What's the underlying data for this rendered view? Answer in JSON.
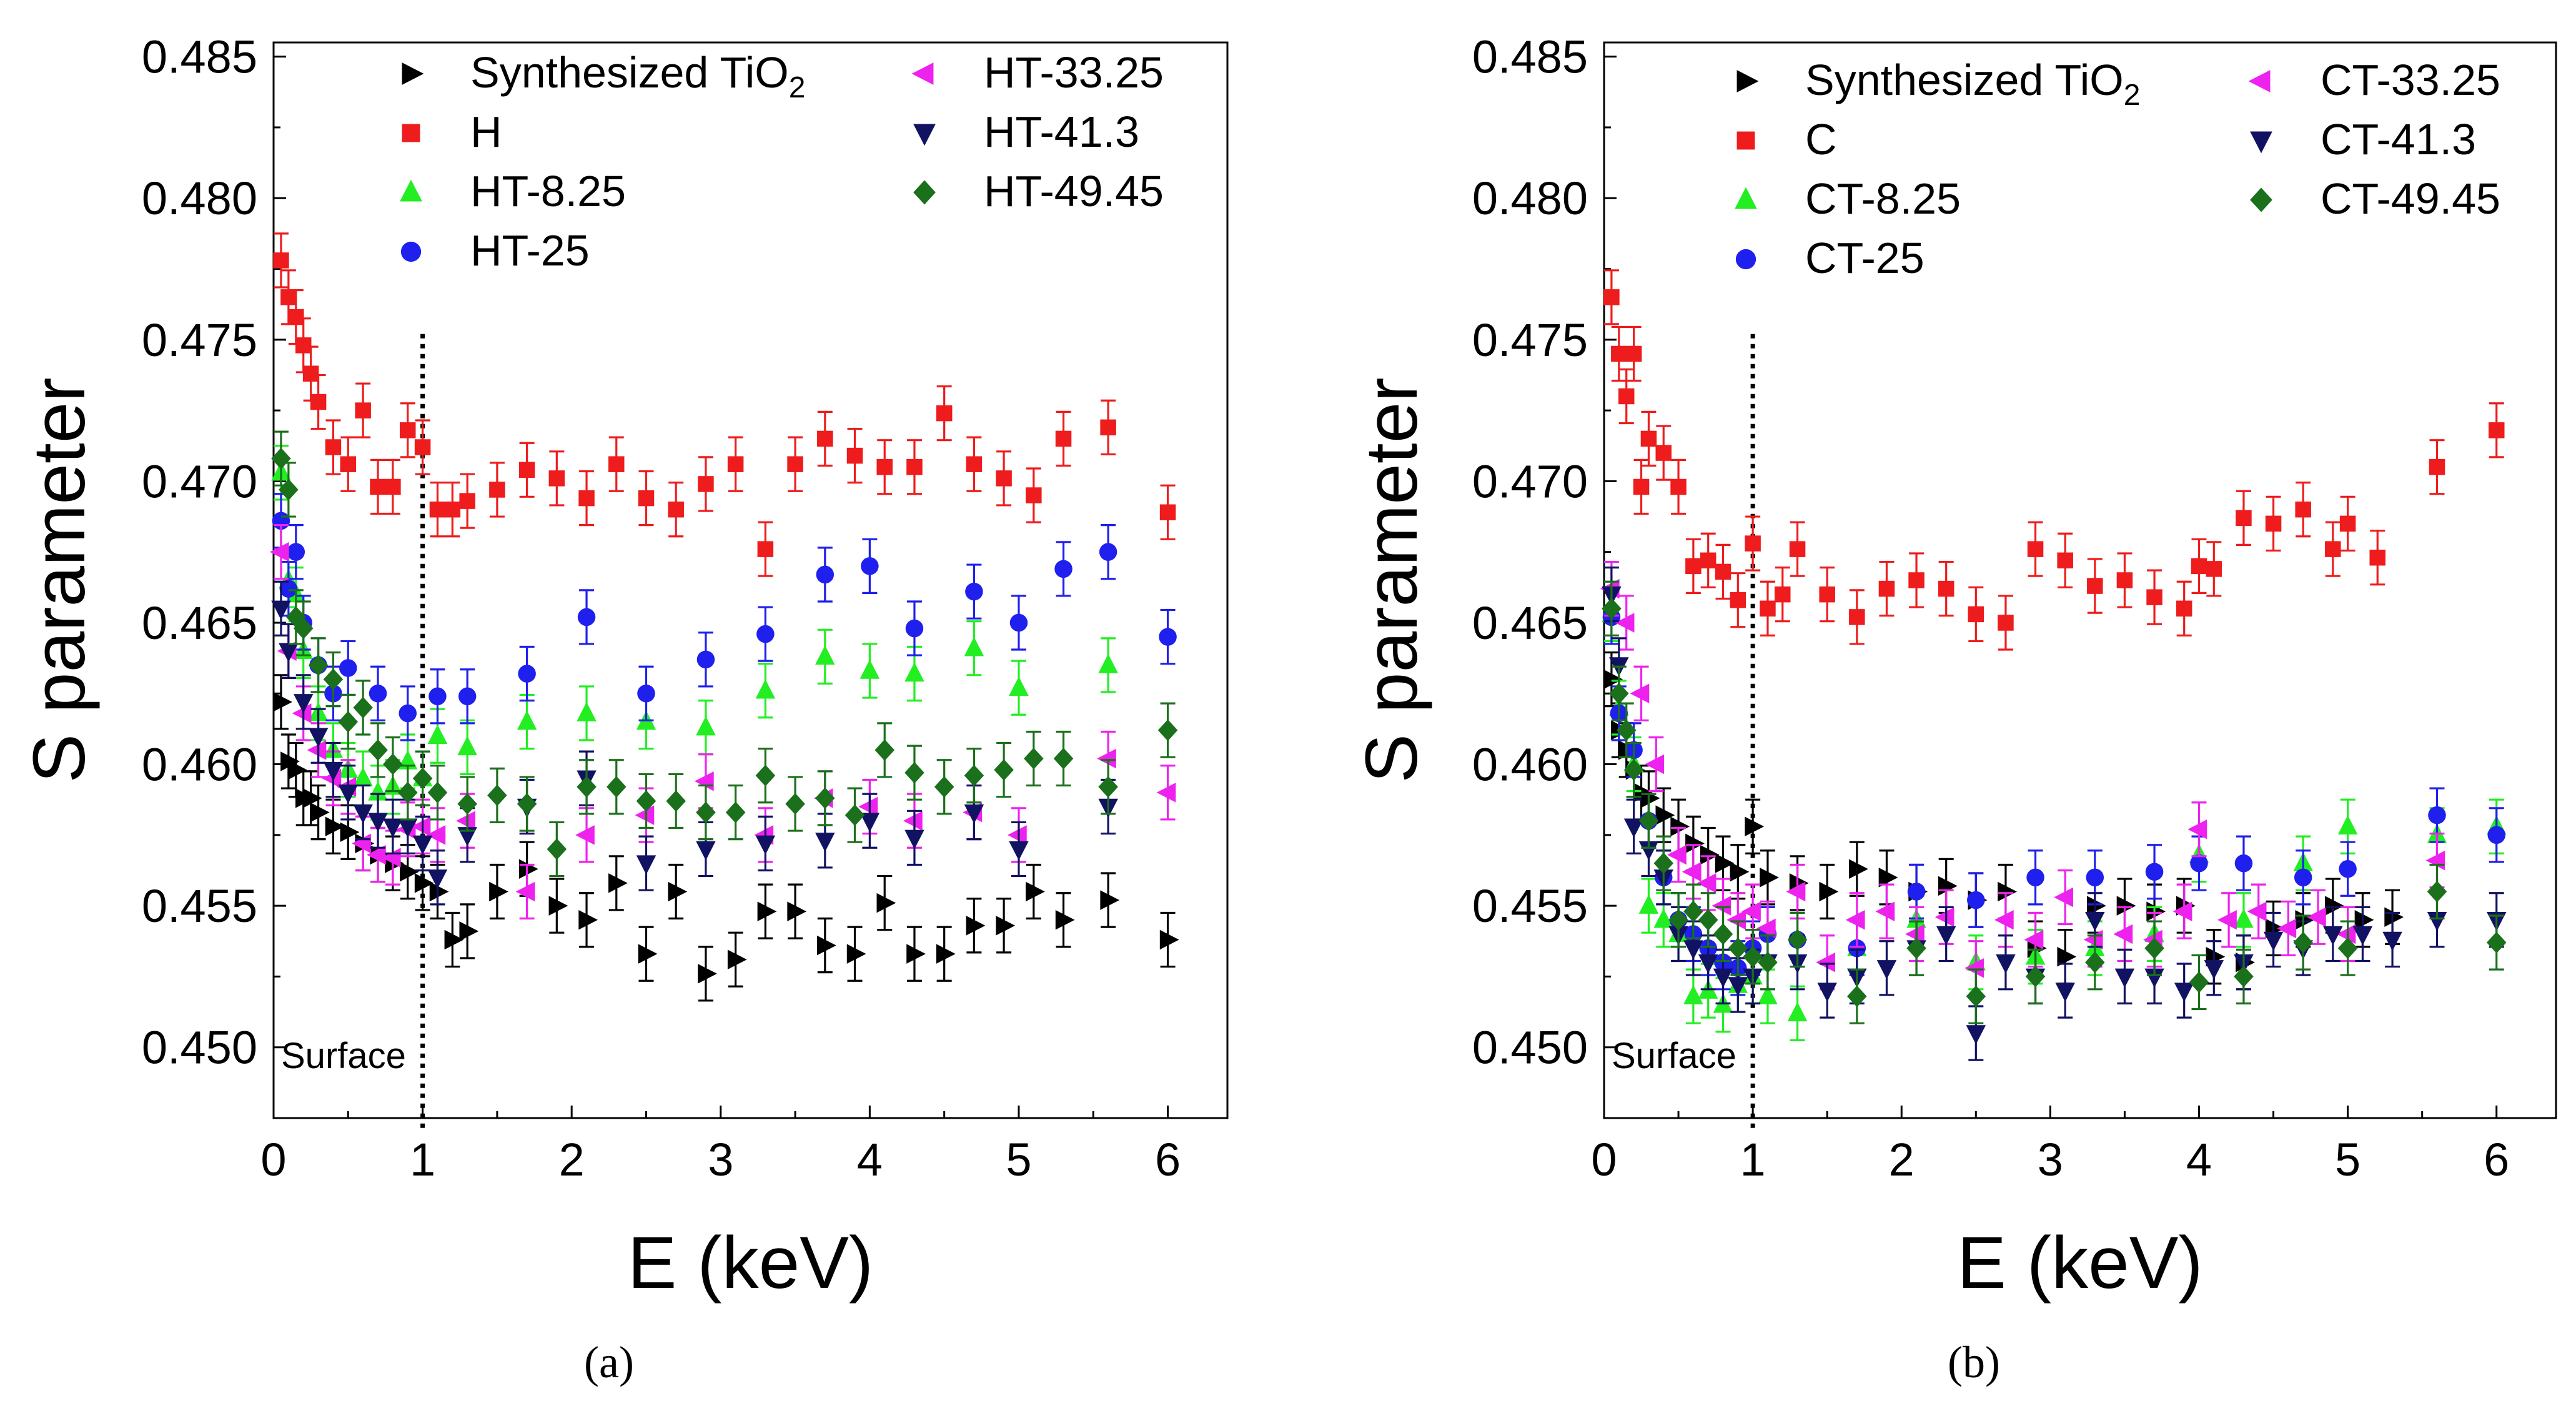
{
  "chart_data": [
    {
      "type": "scatter",
      "xlabel": "E (keV)",
      "ylabel": "S parameter",
      "xlim": [
        0,
        6.4
      ],
      "ylim": [
        0.4475,
        0.4855
      ],
      "xticks": [
        "0",
        "1",
        "2",
        "3",
        "4",
        "5",
        "6"
      ],
      "yticks": [
        "0.450",
        "0.455",
        "0.460",
        "0.465",
        "0.470",
        "0.475",
        "0.480",
        "0.485"
      ],
      "annotation": "Surface",
      "caption": "(a)",
      "series": [
        {
          "name": "Synthesized TiO2",
          "label_main": "Synthesized TiO",
          "label_sub": "2",
          "color": "#000000",
          "marker": "tri-right",
          "x": [
            0.05,
            0.1,
            0.15,
            0.2,
            0.25,
            0.3,
            0.4,
            0.5,
            0.6,
            0.7,
            0.8,
            0.9,
            1.0,
            1.1,
            1.2,
            1.3,
            1.5,
            1.7,
            1.9,
            2.1,
            2.3,
            2.5,
            2.7,
            2.9,
            3.1,
            3.3,
            3.5,
            3.7,
            3.9,
            4.1,
            4.3,
            4.5,
            4.7,
            4.9,
            5.1,
            5.3,
            5.6,
            6.0
          ],
          "y": [
            0.4622,
            0.4601,
            0.4598,
            0.4588,
            0.4588,
            0.4583,
            0.4578,
            0.4576,
            0.4572,
            0.4568,
            0.4565,
            0.4562,
            0.4558,
            0.4555,
            0.4538,
            0.4541,
            0.4555,
            0.4563,
            0.455,
            0.4545,
            0.4558,
            0.4533,
            0.4555,
            0.4526,
            0.4531,
            0.4548,
            0.4548,
            0.4536,
            0.4533,
            0.4551,
            0.4533,
            0.4533,
            0.4543,
            0.4543,
            0.4555,
            0.4545,
            0.4552,
            0.4538
          ]
        },
        {
          "name": "H",
          "color": "#ee1c1c",
          "marker": "square",
          "x": [
            0.05,
            0.1,
            0.15,
            0.2,
            0.25,
            0.3,
            0.4,
            0.5,
            0.6,
            0.7,
            0.8,
            0.9,
            1.0,
            1.1,
            1.2,
            1.3,
            1.5,
            1.7,
            1.9,
            2.1,
            2.3,
            2.5,
            2.7,
            2.9,
            3.1,
            3.3,
            3.5,
            3.7,
            3.9,
            4.1,
            4.3,
            4.5,
            4.7,
            4.9,
            5.1,
            5.3,
            5.6,
            6.0
          ],
          "y": [
            0.4778,
            0.4765,
            0.4758,
            0.4748,
            0.4738,
            0.4728,
            0.4712,
            0.4706,
            0.4725,
            0.4698,
            0.4698,
            0.4718,
            0.4712,
            0.469,
            0.469,
            0.4693,
            0.4697,
            0.4704,
            0.4701,
            0.4694,
            0.4706,
            0.4694,
            0.469,
            0.4699,
            0.4706,
            0.4676,
            0.4706,
            0.4715,
            0.4709,
            0.4705,
            0.4705,
            0.4724,
            0.4706,
            0.4701,
            0.4695,
            0.4715,
            0.4719,
            0.4689
          ]
        },
        {
          "name": "HT-8.25",
          "color": "#22ee22",
          "marker": "tri-up",
          "x": [
            0.05,
            0.1,
            0.15,
            0.2,
            0.3,
            0.4,
            0.5,
            0.6,
            0.7,
            0.8,
            0.9,
            1.0,
            1.1,
            1.3,
            1.7,
            2.1,
            2.5,
            2.9,
            3.3,
            3.7,
            4.0,
            4.3,
            4.7,
            5.0,
            5.6
          ],
          "y": [
            0.4703,
            0.4665,
            0.466,
            0.464,
            0.4618,
            0.4605,
            0.4598,
            0.4595,
            0.459,
            0.4592,
            0.4601,
            0.4595,
            0.461,
            0.4606,
            0.4615,
            0.4618,
            0.4615,
            0.4613,
            0.4626,
            0.4638,
            0.4633,
            0.4632,
            0.4641,
            0.4627,
            0.4635
          ]
        },
        {
          "name": "HT-25",
          "color": "#1f1fee",
          "marker": "circle",
          "x": [
            0.05,
            0.1,
            0.15,
            0.2,
            0.3,
            0.4,
            0.5,
            0.7,
            0.9,
            1.1,
            1.3,
            1.7,
            2.1,
            2.5,
            2.9,
            3.3,
            3.7,
            4.0,
            4.3,
            4.7,
            5.0,
            5.3,
            5.6,
            6.0
          ],
          "y": [
            0.4686,
            0.4662,
            0.4675,
            0.465,
            0.4635,
            0.4625,
            0.4634,
            0.4625,
            0.4618,
            0.4624,
            0.4624,
            0.4632,
            0.4652,
            0.4625,
            0.4637,
            0.4646,
            0.4667,
            0.467,
            0.4648,
            0.4661,
            0.465,
            0.4669,
            0.4675,
            0.4645
          ]
        },
        {
          "name": "HT-33.25",
          "color": "#ee22ee",
          "marker": "tri-left",
          "x": [
            0.05,
            0.1,
            0.2,
            0.3,
            0.4,
            0.5,
            0.6,
            0.7,
            0.8,
            0.9,
            1.0,
            1.1,
            1.3,
            1.7,
            2.1,
            2.5,
            2.9,
            3.3,
            3.7,
            4.0,
            4.3,
            4.7,
            5.0,
            5.6,
            6.0
          ],
          "y": [
            0.4675,
            0.464,
            0.4618,
            0.4605,
            0.4595,
            0.4592,
            0.4572,
            0.4568,
            0.4567,
            0.4577,
            0.4578,
            0.4575,
            0.458,
            0.4555,
            0.4575,
            0.4582,
            0.4594,
            0.4575,
            0.4588,
            0.4585,
            0.458,
            0.4583,
            0.4575,
            0.4602,
            0.459
          ]
        },
        {
          "name": "HT-41.3",
          "color": "#121263",
          "marker": "tri-down",
          "x": [
            0.05,
            0.1,
            0.2,
            0.3,
            0.4,
            0.5,
            0.6,
            0.7,
            0.8,
            0.9,
            1.0,
            1.1,
            1.3,
            1.7,
            2.1,
            2.5,
            2.9,
            3.3,
            3.7,
            4.0,
            4.3,
            4.7,
            5.0,
            5.6
          ],
          "y": [
            0.4655,
            0.464,
            0.4622,
            0.461,
            0.4598,
            0.459,
            0.4583,
            0.458,
            0.4578,
            0.4578,
            0.4572,
            0.456,
            0.4575,
            0.4585,
            0.4595,
            0.4565,
            0.457,
            0.4572,
            0.4573,
            0.458,
            0.4574,
            0.4583,
            0.457,
            0.4585
          ]
        },
        {
          "name": "HT-49.45",
          "color": "#1b701b",
          "marker": "diamond",
          "x": [
            0.05,
            0.1,
            0.15,
            0.2,
            0.3,
            0.4,
            0.5,
            0.6,
            0.7,
            0.8,
            0.9,
            1.0,
            1.1,
            1.3,
            1.5,
            1.7,
            1.9,
            2.1,
            2.3,
            2.5,
            2.7,
            2.9,
            3.1,
            3.3,
            3.5,
            3.7,
            3.9,
            4.1,
            4.3,
            4.5,
            4.7,
            4.9,
            5.1,
            5.3,
            5.6,
            6.0
          ],
          "y": [
            0.4708,
            0.4697,
            0.4652,
            0.4648,
            0.4635,
            0.463,
            0.4615,
            0.462,
            0.4605,
            0.46,
            0.459,
            0.4595,
            0.459,
            0.4586,
            0.4589,
            0.4586,
            0.457,
            0.4592,
            0.4592,
            0.4587,
            0.4587,
            0.4583,
            0.4583,
            0.4596,
            0.4586,
            0.4588,
            0.4582,
            0.4605,
            0.4597,
            0.4592,
            0.4596,
            0.4598,
            0.4602,
            0.4602,
            0.4592,
            0.4612
          ]
        }
      ]
    },
    {
      "type": "scatter",
      "xlabel": "E (keV)",
      "ylabel": "S parameter",
      "xlim": [
        0,
        6.4
      ],
      "ylim": [
        0.4475,
        0.4855
      ],
      "xticks": [
        "0",
        "1",
        "2",
        "3",
        "4",
        "5",
        "6"
      ],
      "yticks": [
        "0.450",
        "0.455",
        "0.460",
        "0.465",
        "0.470",
        "0.475",
        "0.480",
        "0.485"
      ],
      "annotation": "Surface",
      "caption": "(b)",
      "series": [
        {
          "name": "Synthesized TiO2",
          "label_main": "Synthesized TiO",
          "label_sub": "2",
          "color": "#000000",
          "marker": "tri-right",
          "x": [
            0.05,
            0.1,
            0.15,
            0.2,
            0.25,
            0.3,
            0.4,
            0.5,
            0.6,
            0.7,
            0.8,
            0.9,
            1.0,
            1.1,
            1.3,
            1.5,
            1.7,
            1.9,
            2.1,
            2.3,
            2.5,
            2.7,
            2.9,
            3.1,
            3.3,
            3.5,
            3.7,
            3.9,
            4.1,
            4.3,
            4.5,
            4.7,
            4.9,
            5.1,
            5.3
          ],
          "y": [
            0.463,
            0.4612,
            0.4605,
            0.4598,
            0.459,
            0.4588,
            0.4582,
            0.4578,
            0.4572,
            0.4568,
            0.4565,
            0.4562,
            0.4578,
            0.456,
            0.4558,
            0.4555,
            0.4563,
            0.456,
            0.4555,
            0.4557,
            0.4552,
            0.4555,
            0.4535,
            0.4532,
            0.455,
            0.455,
            0.4548,
            0.455,
            0.4532,
            0.453,
            0.4542,
            0.4545,
            0.455,
            0.4545,
            0.4546
          ]
        },
        {
          "name": "C",
          "color": "#ee1c1c",
          "marker": "square",
          "x": [
            0.05,
            0.1,
            0.15,
            0.2,
            0.25,
            0.3,
            0.4,
            0.5,
            0.6,
            0.7,
            0.8,
            0.9,
            1.0,
            1.1,
            1.2,
            1.3,
            1.5,
            1.7,
            1.9,
            2.1,
            2.3,
            2.5,
            2.7,
            2.9,
            3.1,
            3.3,
            3.5,
            3.7,
            3.9,
            4.0,
            4.1,
            4.3,
            4.5,
            4.7,
            4.9,
            5.0,
            5.2,
            5.6,
            6.0
          ],
          "y": [
            0.4765,
            0.4745,
            0.473,
            0.4745,
            0.4698,
            0.4715,
            0.471,
            0.4698,
            0.467,
            0.4672,
            0.4668,
            0.4658,
            0.4678,
            0.4655,
            0.466,
            0.4676,
            0.466,
            0.4652,
            0.4662,
            0.4665,
            0.4662,
            0.4653,
            0.465,
            0.4676,
            0.4672,
            0.4663,
            0.4665,
            0.4659,
            0.4655,
            0.467,
            0.4669,
            0.4687,
            0.4685,
            0.469,
            0.4676,
            0.4685,
            0.4673,
            0.4705,
            0.4718
          ]
        },
        {
          "name": "CT-8.25",
          "color": "#22ee22",
          "marker": "tri-up",
          "x": [
            0.05,
            0.1,
            0.2,
            0.3,
            0.4,
            0.5,
            0.6,
            0.7,
            0.8,
            0.9,
            1.0,
            1.1,
            1.3,
            1.7,
            2.1,
            2.5,
            2.9,
            3.3,
            3.7,
            4.0,
            4.3,
            4.7,
            5.0,
            5.6,
            6.0
          ],
          "y": [
            0.4653,
            0.462,
            0.46,
            0.455,
            0.4545,
            0.454,
            0.4518,
            0.452,
            0.4515,
            0.4522,
            0.4525,
            0.4518,
            0.4512,
            0.4535,
            0.4545,
            0.453,
            0.4532,
            0.4535,
            0.454,
            0.4568,
            0.4545,
            0.4565,
            0.4578,
            0.4575,
            0.4578
          ]
        },
        {
          "name": "CT-25",
          "color": "#1f1fee",
          "marker": "circle",
          "x": [
            0.05,
            0.1,
            0.2,
            0.3,
            0.4,
            0.5,
            0.6,
            0.7,
            0.8,
            0.9,
            1.0,
            1.1,
            1.3,
            1.7,
            2.1,
            2.5,
            2.9,
            3.3,
            3.7,
            4.0,
            4.3,
            4.7,
            5.0,
            5.6,
            6.0
          ],
          "y": [
            0.4652,
            0.4618,
            0.4605,
            0.458,
            0.456,
            0.4545,
            0.454,
            0.4535,
            0.453,
            0.4528,
            0.4535,
            0.454,
            0.4538,
            0.4535,
            0.4555,
            0.4552,
            0.456,
            0.456,
            0.4562,
            0.4565,
            0.4565,
            0.456,
            0.4563,
            0.4582,
            0.4575
          ]
        },
        {
          "name": "CT-33.25",
          "color": "#ee22ee",
          "marker": "tri-left",
          "x": [
            0.05,
            0.15,
            0.25,
            0.35,
            0.5,
            0.6,
            0.7,
            0.8,
            0.9,
            1.0,
            1.1,
            1.3,
            1.5,
            1.7,
            1.9,
            2.1,
            2.3,
            2.5,
            2.7,
            2.9,
            3.1,
            3.3,
            3.5,
            3.7,
            3.9,
            4.0,
            4.2,
            4.4,
            4.6,
            4.8,
            5.0,
            5.6
          ],
          "y": [
            0.4662,
            0.465,
            0.4625,
            0.46,
            0.4568,
            0.4562,
            0.4558,
            0.455,
            0.4545,
            0.4548,
            0.4542,
            0.4555,
            0.453,
            0.4545,
            0.4548,
            0.454,
            0.4546,
            0.4528,
            0.4545,
            0.4538,
            0.4553,
            0.4538,
            0.454,
            0.4538,
            0.4548,
            0.4577,
            0.4545,
            0.4548,
            0.4542,
            0.4546,
            0.454,
            0.4566
          ]
        },
        {
          "name": "CT-41.3",
          "color": "#121263",
          "marker": "tri-down",
          "x": [
            0.05,
            0.1,
            0.2,
            0.3,
            0.4,
            0.5,
            0.6,
            0.7,
            0.8,
            0.9,
            1.0,
            1.1,
            1.3,
            1.5,
            1.7,
            1.9,
            2.1,
            2.3,
            2.5,
            2.7,
            2.9,
            3.1,
            3.3,
            3.5,
            3.7,
            3.9,
            4.1,
            4.3,
            4.5,
            4.7,
            4.9,
            5.1,
            5.3,
            5.6,
            6.0
          ],
          "y": [
            0.466,
            0.4635,
            0.4578,
            0.457,
            0.456,
            0.454,
            0.4535,
            0.453,
            0.4525,
            0.4522,
            0.4525,
            0.453,
            0.453,
            0.452,
            0.4525,
            0.4528,
            0.4535,
            0.454,
            0.4505,
            0.453,
            0.4525,
            0.452,
            0.4545,
            0.4525,
            0.4525,
            0.452,
            0.4528,
            0.453,
            0.4538,
            0.4535,
            0.454,
            0.454,
            0.4538,
            0.4545,
            0.4545
          ]
        },
        {
          "name": "CT-49.45",
          "color": "#1b701b",
          "marker": "diamond",
          "x": [
            0.05,
            0.1,
            0.15,
            0.2,
            0.3,
            0.4,
            0.5,
            0.6,
            0.7,
            0.8,
            0.9,
            1.0,
            1.1,
            1.3,
            1.7,
            2.1,
            2.5,
            2.9,
            3.3,
            3.7,
            4.0,
            4.3,
            4.7,
            5.0,
            5.6,
            6.0
          ],
          "y": [
            0.4655,
            0.4625,
            0.4612,
            0.4598,
            0.458,
            0.4565,
            0.4545,
            0.4548,
            0.4545,
            0.454,
            0.4535,
            0.4532,
            0.453,
            0.4538,
            0.4518,
            0.4535,
            0.4518,
            0.4525,
            0.453,
            0.4535,
            0.4523,
            0.4525,
            0.4537,
            0.4535,
            0.4555,
            0.4537
          ]
        }
      ]
    }
  ]
}
